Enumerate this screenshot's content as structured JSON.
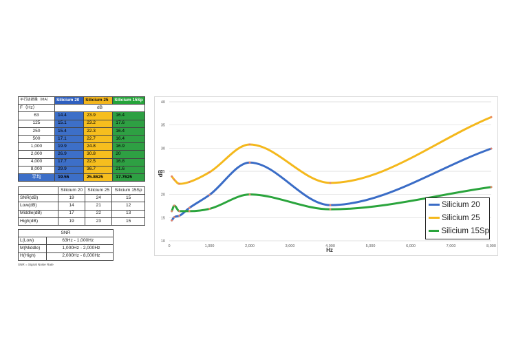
{
  "table1": {
    "header": [
      "平行抜損量（MA）",
      "Silicium 20",
      "Silicium 25",
      "Silicium 15Sp"
    ],
    "subheader": [
      "F（Hz）",
      "dB"
    ],
    "rows": [
      [
        "63",
        "14.4",
        "23.9",
        "16.4"
      ],
      [
        "125",
        "15.1",
        "23.2",
        "17.6"
      ],
      [
        "250",
        "15.4",
        "22.3",
        "16.4"
      ],
      [
        "500",
        "17.1",
        "22.7",
        "16.4"
      ],
      [
        "1,000",
        "19.9",
        "24.8",
        "16.9"
      ],
      [
        "2,000",
        "26.9",
        "30.8",
        "20"
      ],
      [
        "4,000",
        "17.7",
        "22.5",
        "16.8"
      ],
      [
        "8,000",
        "29.9",
        "36.7",
        "21.6"
      ]
    ],
    "avg": [
      "平均",
      "19.55",
      "25.8625",
      "17.7625"
    ]
  },
  "table2": {
    "header": [
      "",
      "Silicium 20",
      "Silicium 25",
      "Silicium 15Sp"
    ],
    "rows": [
      [
        "SNR(dB)",
        "19",
        "24",
        "15"
      ],
      [
        "Low(dB)",
        "14",
        "21",
        "12"
      ],
      [
        "Middle(dB)",
        "17",
        "22",
        "13"
      ],
      [
        "High(dB)",
        "19",
        "23",
        "15"
      ]
    ]
  },
  "table3": {
    "title": "SNR",
    "rows": [
      [
        "L(Low)",
        "63Hz - 1,000Hz"
      ],
      [
        "M(Middle)",
        "1,000Hz - 2,000Hz"
      ],
      [
        "H(High)",
        "2,000Hz - 8,000Hz"
      ]
    ]
  },
  "note": "SNR = Signal Noise Rate",
  "chart_data": {
    "type": "line",
    "xlabel": "Hz",
    "ylabel": "dB",
    "xlim": [
      0,
      8000
    ],
    "ylim": [
      10,
      40
    ],
    "xticks": [
      "0",
      "1,000",
      "2,000",
      "3,000",
      "4,000",
      "5,000",
      "6,000",
      "7,000",
      "8,000"
    ],
    "yticks": [
      "10",
      "15",
      "20",
      "25",
      "30",
      "35",
      "40"
    ],
    "x": [
      63,
      125,
      250,
      500,
      1000,
      2000,
      4000,
      8000
    ],
    "grid": "horizontal",
    "legend_position": "bottom-right",
    "series": [
      {
        "name": "Silicium 20",
        "color": "#3a6cc6",
        "values": [
          14.4,
          15.1,
          15.4,
          17.1,
          19.9,
          26.9,
          17.7,
          29.9
        ]
      },
      {
        "name": "Silicium 25",
        "color": "#f4b81c",
        "values": [
          23.9,
          23.2,
          22.3,
          22.7,
          24.8,
          30.8,
          22.5,
          36.7
        ]
      },
      {
        "name": "Silicium 15Sp",
        "color": "#2aa43c",
        "values": [
          16.4,
          17.6,
          16.4,
          16.4,
          16.9,
          20,
          16.8,
          21.6
        ]
      }
    ]
  }
}
